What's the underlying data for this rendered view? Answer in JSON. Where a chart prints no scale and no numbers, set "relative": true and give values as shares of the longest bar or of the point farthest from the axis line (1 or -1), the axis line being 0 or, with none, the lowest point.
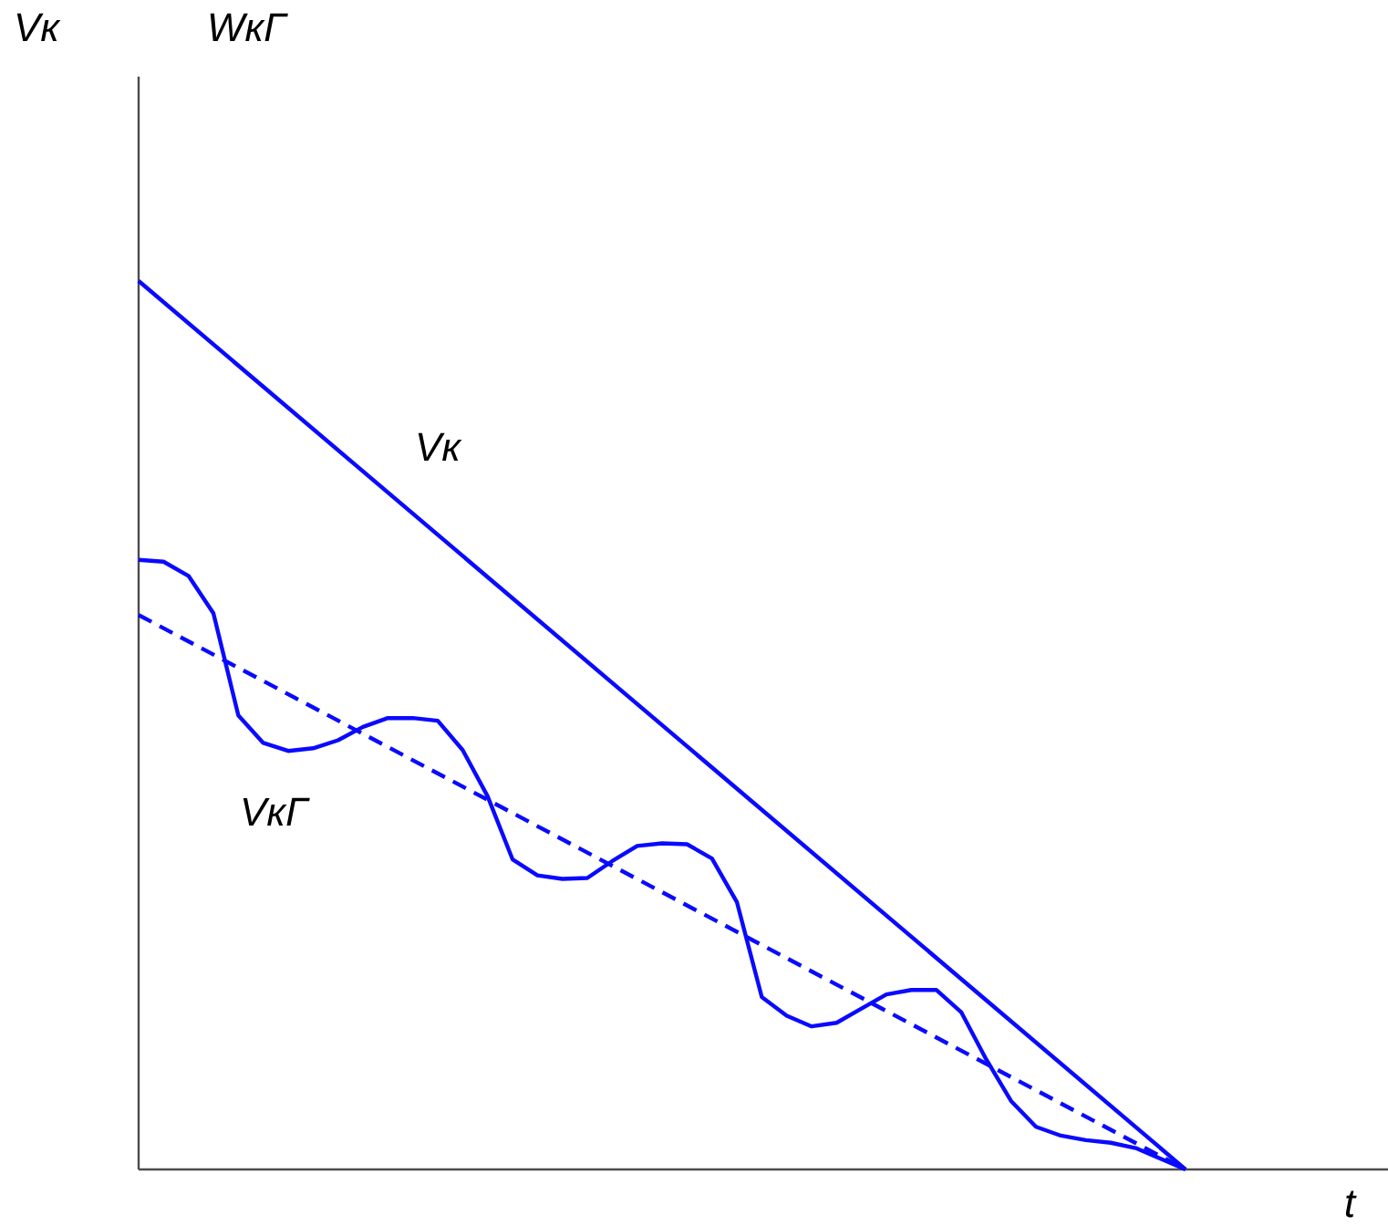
{
  "chart_data": {
    "type": "line",
    "relative": true,
    "xlabel": "t",
    "categories": [
      null,
      null,
      null,
      null,
      null,
      null,
      null,
      null,
      null,
      null,
      null,
      null,
      null,
      null,
      null,
      null,
      null,
      null,
      null,
      null,
      null,
      null,
      null,
      null,
      null,
      null,
      null,
      null,
      null,
      null,
      null,
      null,
      null,
      null,
      null,
      null,
      null,
      null,
      null,
      null,
      null,
      null,
      null
    ],
    "legend": false,
    "annotations": [
      "Vк",
      "WкГ",
      "Vк",
      "VкГ"
    ],
    "series": [
      {
        "color": "#0a0aff",
        "line_style": "solid",
        "values": [
          1.0,
          null,
          null,
          null,
          null,
          null,
          null,
          null,
          null,
          null,
          null,
          null,
          null,
          null,
          null,
          null,
          null,
          null,
          null,
          null,
          null,
          null,
          null,
          null,
          null,
          null,
          null,
          null,
          null,
          null,
          null,
          null,
          null,
          null,
          null,
          null,
          null,
          null,
          null,
          null,
          null,
          null,
          0
        ]
      },
      {
        "color": "#0a0aff",
        "line_style": "dashed",
        "values": [
          0.624,
          null,
          null,
          null,
          null,
          null,
          null,
          null,
          null,
          null,
          null,
          null,
          null,
          null,
          null,
          null,
          null,
          null,
          null,
          null,
          null,
          null,
          null,
          null,
          null,
          null,
          null,
          null,
          null,
          null,
          null,
          null,
          null,
          null,
          null,
          null,
          null,
          null,
          null,
          null,
          null,
          null,
          0
        ]
      },
      {
        "color": "#0a0aff",
        "line_style": "solid",
        "values": [
          0.686,
          0.684,
          0.668,
          0.626,
          0.511,
          0.48,
          0.471,
          0.474,
          0.483,
          0.498,
          0.508,
          0.508,
          0.505,
          0.472,
          0.42,
          0.349,
          0.331,
          0.327,
          0.328,
          0.347,
          0.364,
          0.367,
          0.366,
          0.35,
          0.301,
          0.194,
          0.173,
          0.161,
          0.165,
          0.181,
          0.197,
          0.202,
          0.202,
          0.177,
          0.124,
          0.077,
          0.048,
          0.038,
          0.033,
          0.03,
          0.024,
          0.012,
          0
        ]
      }
    ]
  }
}
